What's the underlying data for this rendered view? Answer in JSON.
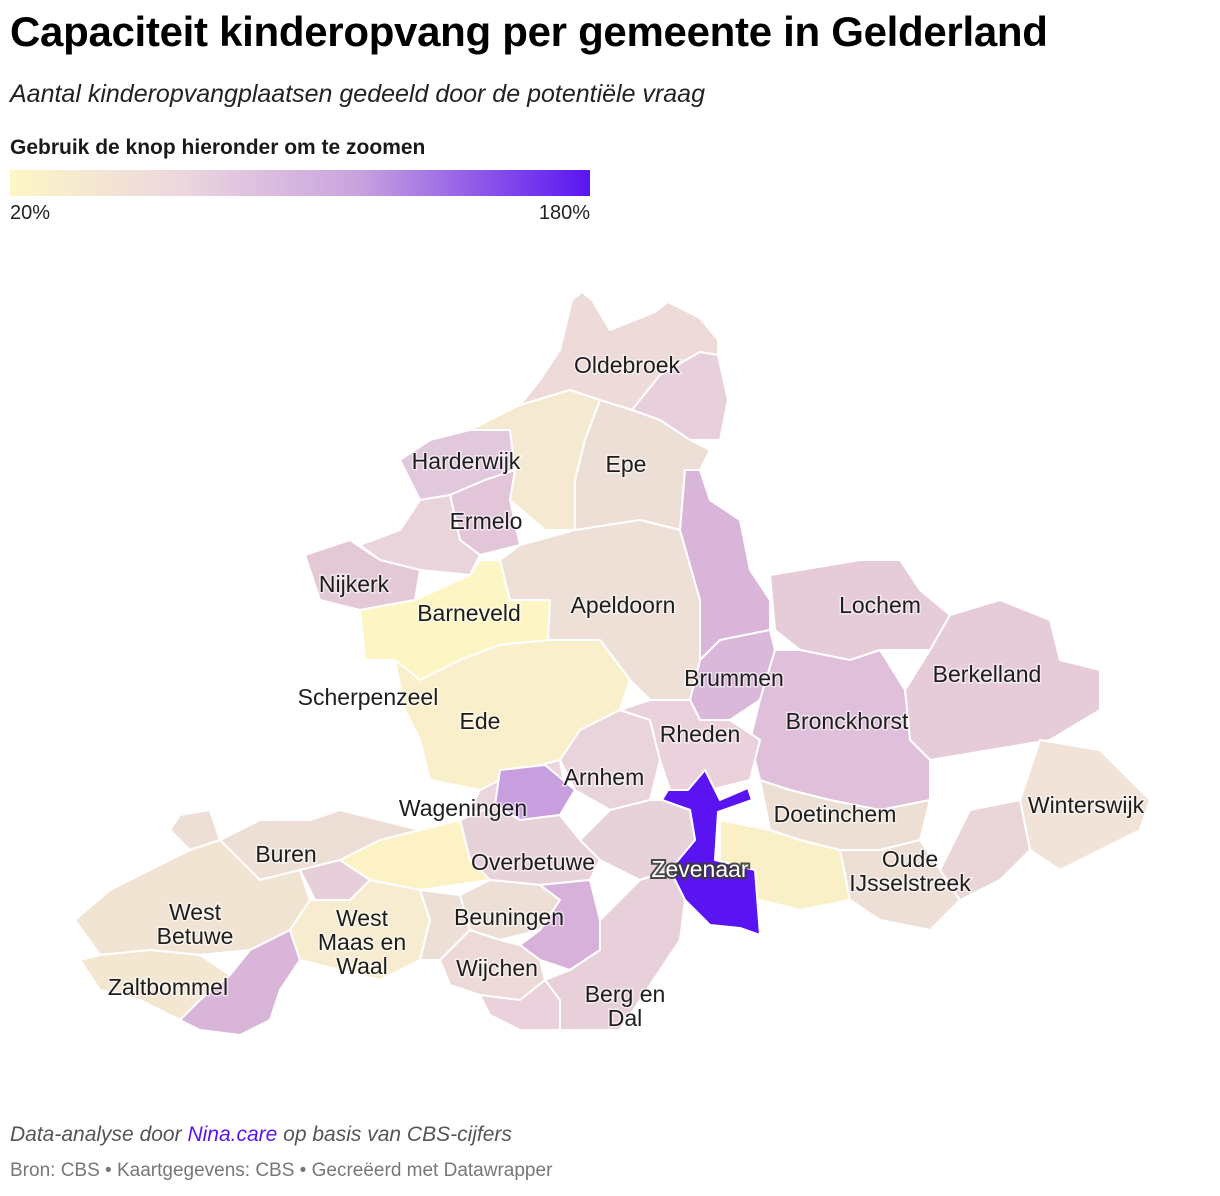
{
  "title": "Capaciteit kinderopvang per gemeente in Gelderland",
  "subtitle": "Aantal kinderopvangplaatsen gedeeld door de potentiële vraag",
  "legend": {
    "title": "Gebruik de knop hieronder om te zoomen",
    "min_label": "20%",
    "max_label": "180%",
    "min_value": 20,
    "max_value": 180,
    "colors": [
      "#fdf6c4",
      "#ecd6df",
      "#c8a3df",
      "#5a14f2"
    ]
  },
  "map": {
    "region": "Gelderland",
    "highlighted": "Zevenaar",
    "labels": [
      {
        "id": "oldebroek",
        "name": "Oldebroek"
      },
      {
        "id": "harderwijk",
        "name": "Harderwijk"
      },
      {
        "id": "epe",
        "name": "Epe"
      },
      {
        "id": "ermelo",
        "name": "Ermelo"
      },
      {
        "id": "nijkerk",
        "name": "Nijkerk"
      },
      {
        "id": "barneveld",
        "name": "Barneveld"
      },
      {
        "id": "apeldoorn",
        "name": "Apeldoorn"
      },
      {
        "id": "lochem",
        "name": "Lochem"
      },
      {
        "id": "berkelland",
        "name": "Berkelland"
      },
      {
        "id": "brummen",
        "name": "Brummen"
      },
      {
        "id": "scherpenzeel",
        "name": "Scherpenzeel"
      },
      {
        "id": "ede",
        "name": "Ede"
      },
      {
        "id": "bronckhorst",
        "name": "Bronckhorst"
      },
      {
        "id": "rheden",
        "name": "Rheden"
      },
      {
        "id": "arnhem",
        "name": "Arnhem"
      },
      {
        "id": "winterswijk",
        "name": "Winterswijk"
      },
      {
        "id": "wageningen",
        "name": "Wageningen"
      },
      {
        "id": "doetinchem",
        "name": "Doetinchem"
      },
      {
        "id": "buren",
        "name": "Buren"
      },
      {
        "id": "overbetuwe",
        "name": "Overbetuwe"
      },
      {
        "id": "zevenaar",
        "name": "Zevenaar"
      },
      {
        "id": "oude-ijsselstreek",
        "name": "Oude\nIJsselstreek"
      },
      {
        "id": "west-betuwe",
        "name": "West\nBetuwe"
      },
      {
        "id": "west-maas-en-waal",
        "name": "West\nMaas en\nWaal"
      },
      {
        "id": "beuningen",
        "name": "Beuningen"
      },
      {
        "id": "wijchen",
        "name": "Wijchen"
      },
      {
        "id": "zaltbommel",
        "name": "Zaltbommel"
      },
      {
        "id": "berg-en-dal",
        "name": "Berg en\nDal"
      }
    ]
  },
  "footer": {
    "credit_prefix": "Data-analyse door ",
    "credit_link": "Nina.care",
    "credit_suffix": " op basis van CBS-cijfers",
    "source": "Bron: CBS • Kaartgegevens: CBS • Gecreëerd met Datawrapper"
  }
}
